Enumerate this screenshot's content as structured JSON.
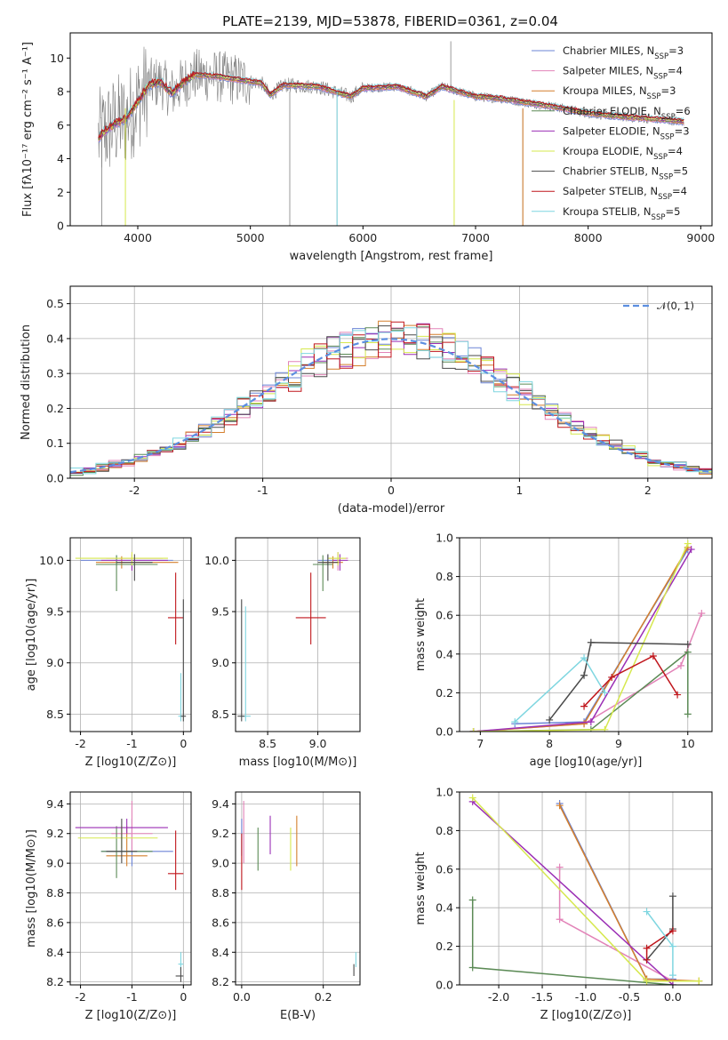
{
  "title": "PLATE=2139, MJD=53878, FIBERID=0361, z=0.04",
  "legend": [
    {
      "label": "Chabrier MILES, N",
      "n": "3",
      "color": "#6b84d6"
    },
    {
      "label": "Salpeter MILES, N",
      "n": "4",
      "color": "#e283b8"
    },
    {
      "label": "Kroupa MILES, N",
      "n": "3",
      "color": "#d47f2c"
    },
    {
      "label": "Chabrier ELODIE, N",
      "n": "6",
      "color": "#5b8a55"
    },
    {
      "label": "Salpeter ELODIE, N",
      "n": "3",
      "color": "#9b2fb5"
    },
    {
      "label": "Kroupa ELODIE, N",
      "n": "4",
      "color": "#d6e84e"
    },
    {
      "label": "Chabrier STELIB, N",
      "n": "5",
      "color": "#4a4a4a"
    },
    {
      "label": "Salpeter STELIB, N",
      "n": "4",
      "color": "#c0161c"
    },
    {
      "label": "Kroupa STELIB, N",
      "n": "5",
      "color": "#7fd6e0"
    }
  ],
  "chart_data": [
    {
      "type": "line",
      "name": "spectrum",
      "xlabel": "wavelength [Angstrom, rest frame]",
      "ylabel": "Flux [fλ10⁻¹⁷ erg cm⁻² s⁻¹ A⁻¹]",
      "xlim": [
        3400,
        9100
      ],
      "ylim": [
        0,
        11.5
      ],
      "xticks": [
        4000,
        5000,
        6000,
        7000,
        8000,
        9000
      ],
      "yticks": [
        0,
        2,
        4,
        6,
        8,
        10
      ],
      "data_color": "#808080",
      "model_color": "#c0161c",
      "model_profile": [
        [
          3650,
          5.2
        ],
        [
          3700,
          5.6
        ],
        [
          3800,
          6.1
        ],
        [
          3900,
          6.4
        ],
        [
          4000,
          7.4
        ],
        [
          4100,
          8.4
        ],
        [
          4200,
          8.6
        ],
        [
          4300,
          7.9
        ],
        [
          4400,
          8.5
        ],
        [
          4500,
          9.0
        ],
        [
          4700,
          8.9
        ],
        [
          4900,
          8.7
        ],
        [
          5100,
          8.5
        ],
        [
          5175,
          7.8
        ],
        [
          5300,
          8.4
        ],
        [
          5600,
          8.3
        ],
        [
          5890,
          7.7
        ],
        [
          6000,
          8.2
        ],
        [
          6300,
          8.3
        ],
        [
          6563,
          7.7
        ],
        [
          6700,
          8.3
        ],
        [
          7000,
          7.7
        ],
        [
          7200,
          7.6
        ],
        [
          7400,
          7.4
        ],
        [
          7700,
          7.1
        ],
        [
          8000,
          6.7
        ],
        [
          8300,
          6.5
        ],
        [
          8500,
          6.4
        ],
        [
          8700,
          6.3
        ],
        [
          8850,
          6.2
        ]
      ]
    },
    {
      "type": "histogram",
      "name": "residuals",
      "xlabel": "(data-model)/error",
      "ylabel": "Normed distribution",
      "xlim": [
        -2.5,
        2.5
      ],
      "ylim": [
        0,
        0.55
      ],
      "xticks": [
        -2,
        -1,
        0,
        1,
        2
      ],
      "yticks": [
        0.0,
        0.1,
        0.2,
        0.3,
        0.4,
        0.5
      ],
      "reference": {
        "label": "𝒩(0, 1)",
        "color": "#5b8ee0"
      },
      "bins": 50
    },
    {
      "type": "scatter",
      "name": "age-vs-Z",
      "xlabel": "Z [log10(Z/Z⊙)]",
      "ylabel": "age  [log10(age/yr)]",
      "xlim": [
        -2.2,
        0.15
      ],
      "ylim": [
        8.33,
        10.22
      ],
      "xticks": [
        -2,
        -1,
        0
      ],
      "yticks": [
        8.5,
        9.0,
        9.5,
        10.0
      ],
      "points": [
        {
          "s": 0,
          "x": -1.3,
          "y": 10.0,
          "xe": [
            -2.0,
            -0.2
          ],
          "ye": [
            9.95,
            10.05
          ]
        },
        {
          "s": 1,
          "x": -1.0,
          "y": 10.02,
          "xe": [
            -1.5,
            -0.4
          ],
          "ye": [
            9.9,
            10.08
          ]
        },
        {
          "s": 2,
          "x": -1.2,
          "y": 9.98,
          "xe": [
            -1.7,
            -0.1
          ],
          "ye": [
            9.92,
            10.04
          ]
        },
        {
          "s": 3,
          "x": -1.3,
          "y": 9.96,
          "xe": [
            -1.7,
            -0.5
          ],
          "ye": [
            9.7,
            10.05
          ]
        },
        {
          "s": 4,
          "x": -1.0,
          "y": 10.0,
          "xe": [
            -1.6,
            -0.3
          ],
          "ye": [
            9.9,
            10.06
          ]
        },
        {
          "s": 5,
          "x": -1.0,
          "y": 10.02,
          "xe": [
            -2.1,
            -0.3
          ],
          "ye": [
            9.95,
            10.08
          ]
        },
        {
          "s": 6,
          "x": -0.95,
          "y": 9.98,
          "xe": [
            -1.3,
            -0.6
          ],
          "ye": [
            9.8,
            10.06
          ]
        },
        {
          "s": 7,
          "x": -0.15,
          "y": 9.44,
          "xe": [
            -0.3,
            0.0
          ],
          "ye": [
            9.18,
            9.88
          ]
        },
        {
          "s": 8,
          "x": -0.05,
          "y": 8.48,
          "xe": [
            -0.1,
            0.0
          ],
          "ye": [
            8.43,
            8.9
          ]
        },
        {
          "s": 6,
          "x": 0.0,
          "y": 8.48,
          "xe": [
            -0.05,
            0.05
          ],
          "ye": [
            8.43,
            9.62
          ]
        }
      ]
    },
    {
      "type": "scatter",
      "name": "age-vs-mass",
      "xlabel": "mass [log10(M/M⊙)]",
      "ylabel": "",
      "xlim": [
        8.18,
        9.42
      ],
      "ylim": [
        8.33,
        10.22
      ],
      "xticks": [
        8.5,
        9.0
      ],
      "yticks": [
        8.5,
        9.0,
        9.5,
        10.0
      ],
      "points": [
        {
          "s": 0,
          "x": 9.1,
          "y": 10.0,
          "xe": [
            9.0,
            9.2
          ],
          "ye": [
            9.95,
            10.05
          ]
        },
        {
          "s": 1,
          "x": 9.2,
          "y": 10.02,
          "xe": [
            9.1,
            9.3
          ],
          "ye": [
            9.9,
            10.08
          ]
        },
        {
          "s": 2,
          "x": 9.15,
          "y": 9.98,
          "xe": [
            9.05,
            9.25
          ],
          "ye": [
            9.92,
            10.04
          ]
        },
        {
          "s": 3,
          "x": 9.05,
          "y": 9.96,
          "xe": [
            8.95,
            9.15
          ],
          "ye": [
            9.7,
            10.05
          ]
        },
        {
          "s": 4,
          "x": 9.22,
          "y": 10.0,
          "xe": [
            9.15,
            9.3
          ],
          "ye": [
            9.9,
            10.06
          ]
        },
        {
          "s": 5,
          "x": 9.2,
          "y": 10.02,
          "xe": [
            9.1,
            9.28
          ],
          "ye": [
            9.95,
            10.08
          ]
        },
        {
          "s": 6,
          "x": 9.1,
          "y": 9.98,
          "xe": [
            9.0,
            9.2
          ],
          "ye": [
            9.8,
            10.06
          ]
        },
        {
          "s": 7,
          "x": 8.93,
          "y": 9.44,
          "xe": [
            8.78,
            9.08
          ],
          "ye": [
            9.18,
            9.88
          ]
        },
        {
          "s": 8,
          "x": 8.28,
          "y": 8.48,
          "xe": [
            8.23,
            8.33
          ],
          "ye": [
            8.43,
            9.55
          ]
        },
        {
          "s": 6,
          "x": 8.24,
          "y": 8.48,
          "xe": [
            8.2,
            8.27
          ],
          "ye": [
            8.43,
            9.62
          ]
        }
      ]
    },
    {
      "type": "line",
      "name": "mass-weight-vs-age",
      "xlabel": "age  [log10(age/yr)]",
      "ylabel": "mass weight",
      "xlim": [
        6.7,
        10.35
      ],
      "ylim": [
        0,
        1
      ],
      "xticks": [
        7,
        8,
        9,
        10
      ],
      "yticks": [
        0.0,
        0.2,
        0.4,
        0.6,
        0.8,
        1.0
      ],
      "series": [
        {
          "s": 0,
          "x": [
            7.5,
            8.5,
            10.0
          ],
          "y": [
            0.04,
            0.05,
            0.94
          ]
        },
        {
          "s": 1,
          "x": [
            6.9,
            8.5,
            9.9,
            10.2
          ],
          "y": [
            0.0,
            0.04,
            0.34,
            0.61
          ]
        },
        {
          "s": 2,
          "x": [
            6.9,
            8.5,
            10.0
          ],
          "y": [
            0.0,
            0.04,
            0.95
          ]
        },
        {
          "s": 3,
          "x": [
            6.9,
            8.6,
            10.0,
            10.0
          ],
          "y": [
            0.0,
            0.01,
            0.41,
            0.09
          ]
        },
        {
          "s": 4,
          "x": [
            6.9,
            8.6,
            10.05
          ],
          "y": [
            0.0,
            0.05,
            0.94
          ]
        },
        {
          "s": 5,
          "x": [
            6.9,
            8.8,
            10.0
          ],
          "y": [
            0.0,
            0.01,
            0.97
          ]
        },
        {
          "s": 6,
          "x": [
            8.0,
            8.5,
            8.6,
            10.0
          ],
          "y": [
            0.06,
            0.29,
            0.46,
            0.45
          ]
        },
        {
          "s": 7,
          "x": [
            8.5,
            8.9,
            9.5,
            9.85
          ],
          "y": [
            0.13,
            0.28,
            0.39,
            0.19
          ]
        },
        {
          "s": 8,
          "x": [
            7.5,
            8.5,
            8.8
          ],
          "y": [
            0.05,
            0.38,
            0.2
          ]
        }
      ]
    },
    {
      "type": "scatter",
      "name": "mass-vs-Z",
      "xlabel": "Z [log10(Z/Z⊙)]",
      "ylabel": "mass [log10(M/M⊙)]",
      "xlim": [
        -2.2,
        0.15
      ],
      "ylim": [
        8.18,
        9.48
      ],
      "xticks": [
        -2,
        -1,
        0
      ],
      "yticks": [
        8.2,
        8.4,
        8.6,
        8.8,
        9.0,
        9.2,
        9.4
      ],
      "points": [
        {
          "s": 0,
          "x": -1.0,
          "y": 9.08,
          "xe": [
            -1.6,
            -0.2
          ],
          "ye": [
            8.98,
            9.3
          ]
        },
        {
          "s": 1,
          "x": -1.0,
          "y": 9.2,
          "xe": [
            -1.4,
            -0.6
          ],
          "ye": [
            9.08,
            9.42
          ]
        },
        {
          "s": 2,
          "x": -1.1,
          "y": 9.05,
          "xe": [
            -1.5,
            -0.7
          ],
          "ye": [
            8.98,
            9.25
          ]
        },
        {
          "s": 3,
          "x": -1.3,
          "y": 9.08,
          "xe": [
            -1.6,
            -0.6
          ],
          "ye": [
            8.9,
            9.25
          ]
        },
        {
          "s": 4,
          "x": -1.1,
          "y": 9.24,
          "xe": [
            -2.1,
            -0.3
          ],
          "ye": [
            9.2,
            9.3
          ]
        },
        {
          "s": 5,
          "x": -1.2,
          "y": 9.17,
          "xe": [
            -2.05,
            -0.5
          ],
          "ye": [
            9.1,
            9.25
          ]
        },
        {
          "s": 6,
          "x": -1.2,
          "y": 9.08,
          "xe": [
            -1.5,
            -0.9
          ],
          "ye": [
            9.0,
            9.3
          ]
        },
        {
          "s": 7,
          "x": -0.15,
          "y": 8.93,
          "xe": [
            -0.3,
            0.0
          ],
          "ye": [
            8.82,
            9.22
          ]
        },
        {
          "s": 8,
          "x": -0.05,
          "y": 8.32,
          "xe": [
            -0.1,
            0.0
          ],
          "ye": [
            8.28,
            8.4
          ]
        },
        {
          "s": 6,
          "x": -0.05,
          "y": 8.24,
          "xe": [
            -0.15,
            0.0
          ],
          "ye": [
            8.2,
            8.3
          ]
        }
      ]
    },
    {
      "type": "scatter",
      "name": "mass-vs-EBV",
      "xlabel": "E(B-V)",
      "ylabel": "",
      "xlim": [
        -0.015,
        0.29
      ],
      "ylim": [
        8.18,
        9.48
      ],
      "xticks": [
        0.0,
        0.2
      ],
      "yticks": [
        8.2,
        8.4,
        8.6,
        8.8,
        9.0,
        9.2,
        9.4
      ],
      "points": [
        {
          "s": 0,
          "x": 0.0,
          "y": 9.15,
          "xe": [
            0.0,
            0.0
          ],
          "ye": [
            9.05,
            9.3
          ]
        },
        {
          "s": 1,
          "x": 0.005,
          "y": 9.2,
          "xe": [
            0.005,
            0.005
          ],
          "ye": [
            9.0,
            9.42
          ]
        },
        {
          "s": 2,
          "x": 0.135,
          "y": 9.1,
          "xe": [
            0.135,
            0.135
          ],
          "ye": [
            8.98,
            9.32
          ]
        },
        {
          "s": 3,
          "x": 0.04,
          "y": 9.1,
          "xe": [
            0.04,
            0.04
          ],
          "ye": [
            8.95,
            9.24
          ]
        },
        {
          "s": 4,
          "x": 0.07,
          "y": 9.2,
          "xe": [
            0.07,
            0.07
          ],
          "ye": [
            9.06,
            9.32
          ]
        },
        {
          "s": 5,
          "x": 0.12,
          "y": 9.1,
          "xe": [
            0.12,
            0.12
          ],
          "ye": [
            8.95,
            9.24
          ]
        },
        {
          "s": 6,
          "x": 0.275,
          "y": 8.26,
          "xe": [
            0.275,
            0.275
          ],
          "ye": [
            8.24,
            8.32
          ]
        },
        {
          "s": 7,
          "x": 0.0,
          "y": 9.0,
          "xe": [
            0.0,
            0.0
          ],
          "ye": [
            8.82,
            9.2
          ]
        },
        {
          "s": 8,
          "x": 0.28,
          "y": 8.34,
          "xe": [
            0.28,
            0.28
          ],
          "ye": [
            8.3,
            8.4
          ]
        }
      ]
    },
    {
      "type": "line",
      "name": "mass-weight-vs-Z",
      "xlabel": "Z [log10(Z/Z⊙)]",
      "ylabel": "mass weight",
      "xlim": [
        -2.45,
        0.45
      ],
      "ylim": [
        0,
        1
      ],
      "xticks": [
        -2.0,
        -1.5,
        -1.0,
        -0.5,
        0.0
      ],
      "yticks": [
        0.0,
        0.2,
        0.4,
        0.6,
        0.8,
        1.0
      ],
      "series": [
        {
          "s": 0,
          "x": [
            -1.3,
            -0.3,
            0.0
          ],
          "y": [
            0.94,
            0.03,
            0.03
          ]
        },
        {
          "s": 1,
          "x": [
            -1.3,
            -1.3,
            0.0
          ],
          "y": [
            0.61,
            0.34,
            0.02
          ]
        },
        {
          "s": 2,
          "x": [
            -1.3,
            -0.3,
            0.3
          ],
          "y": [
            0.93,
            0.03,
            0.02
          ]
        },
        {
          "s": 3,
          "x": [
            -2.3,
            -2.3,
            0.0
          ],
          "y": [
            0.44,
            0.09,
            0.0
          ]
        },
        {
          "s": 4,
          "x": [
            -2.3,
            0.0
          ],
          "y": [
            0.95,
            0.0
          ]
        },
        {
          "s": 5,
          "x": [
            -2.3,
            -0.3,
            0.3
          ],
          "y": [
            0.97,
            0.02,
            0.02
          ]
        },
        {
          "s": 6,
          "x": [
            -0.3,
            0.0,
            0.0
          ],
          "y": [
            0.13,
            0.29,
            0.46
          ]
        },
        {
          "s": 7,
          "x": [
            -0.3,
            -0.3,
            0.0
          ],
          "y": [
            0.13,
            0.19,
            0.28
          ]
        },
        {
          "s": 8,
          "x": [
            -0.3,
            0.0,
            0.0
          ],
          "y": [
            0.38,
            0.2,
            0.05
          ]
        }
      ]
    }
  ]
}
